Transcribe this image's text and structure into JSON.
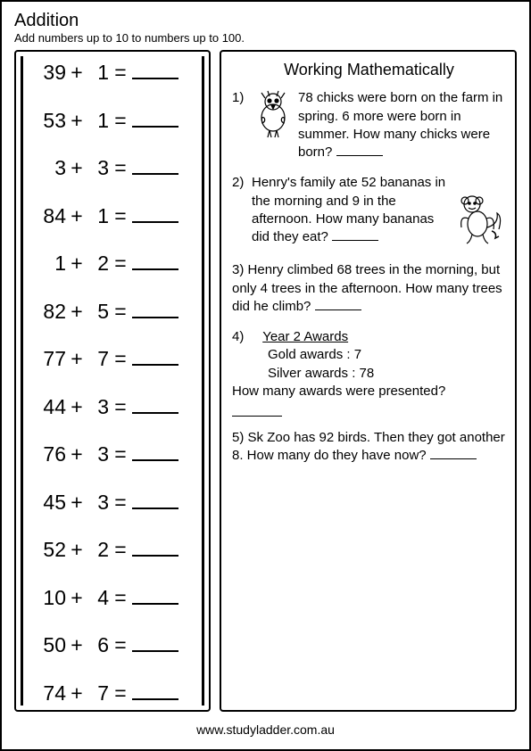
{
  "header": {
    "title": "Addition",
    "subtitle": "Add numbers up to 10 to numbers up to 100."
  },
  "equations": [
    {
      "a": "39",
      "b": "1"
    },
    {
      "a": "53",
      "b": "1"
    },
    {
      "a": "3",
      "b": "3"
    },
    {
      "a": "84",
      "b": "1"
    },
    {
      "a": "1",
      "b": "2"
    },
    {
      "a": "82",
      "b": "5"
    },
    {
      "a": "77",
      "b": "7"
    },
    {
      "a": "44",
      "b": "3"
    },
    {
      "a": "76",
      "b": "3"
    },
    {
      "a": "45",
      "b": "3"
    },
    {
      "a": "52",
      "b": "2"
    },
    {
      "a": "10",
      "b": "4"
    },
    {
      "a": "50",
      "b": "6"
    },
    {
      "a": "74",
      "b": "7"
    }
  ],
  "working": {
    "title": "Working Mathematically",
    "p1": {
      "num": "1)",
      "text": "78 chicks were born on the farm in spring. 6 more were born in summer. How many chicks were born? "
    },
    "p2": {
      "num": "2)",
      "text1": "Henry's family ate 52 bananas in the morning and 9 in the afternoon. How many bananas did they eat? "
    },
    "p3": {
      "num": "3)",
      "text": "Henry climbed 68 trees in the morning, but only 4 trees in the afternoon. How many trees did he climb? "
    },
    "p4": {
      "num": "4)",
      "title": "Year 2 Awards",
      "gold": "Gold awards : 7",
      "silver": "Silver awards : 78",
      "question": "How many awards were presented?"
    },
    "p5": {
      "num": "5)",
      "text": "Sk Zoo has 92 birds. Then they got another 8. How many do they have now? "
    }
  },
  "footer": "www.studyladder.com.au",
  "symbols": {
    "plus": "+",
    "equals": "="
  }
}
